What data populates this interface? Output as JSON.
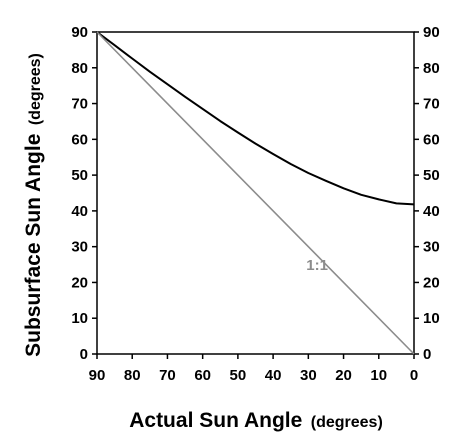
{
  "chart_data": {
    "type": "line",
    "xlabel_main": "Actual Sun Angle",
    "xlabel_unit": "(degrees)",
    "ylabel_main": "Subsurface Sun Angle",
    "ylabel_unit": "(degrees)",
    "xlim": [
      90,
      0
    ],
    "ylim": [
      0,
      90
    ],
    "x_reversed": true,
    "x_ticks": [
      90,
      80,
      70,
      60,
      50,
      40,
      30,
      20,
      10,
      0
    ],
    "y_ticks": [
      0,
      10,
      20,
      30,
      40,
      50,
      60,
      70,
      80,
      90
    ],
    "secondary_y_axis": true,
    "grid": false,
    "series": [
      {
        "color": "#000000",
        "x": [
          90,
          85,
          80,
          75,
          70,
          65,
          60,
          55,
          50,
          45,
          40,
          35,
          30,
          25,
          20,
          15,
          10,
          5,
          0
        ],
        "y": [
          90,
          86.3,
          82.6,
          78.9,
          75.4,
          71.9,
          68.5,
          65.1,
          61.9,
          58.8,
          55.9,
          53.1,
          50.6,
          48.4,
          46.3,
          44.5,
          43.2,
          42.1,
          41.8
        ]
      },
      {
        "name": "1:1",
        "color": "#8c8c8c",
        "x": [
          90,
          0
        ],
        "y": [
          90,
          0
        ]
      }
    ]
  }
}
